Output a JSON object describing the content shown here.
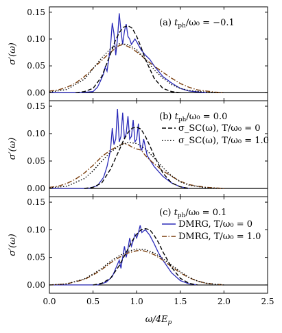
{
  "colors": {
    "dmrg_T0": "#2a2ab8",
    "dmrg_T1": "#7a3d0c",
    "sc_T0": "#000000",
    "sc_T1": "#000000",
    "zero_line": "#000000"
  },
  "chart_data": [
    {
      "type": "line",
      "panel_label": "(a) t_ph/ω₀ = −0.1",
      "ylabel": "σ′(ω)",
      "xlim": [
        0.0,
        2.5
      ],
      "ylim": [
        -0.015,
        0.16
      ],
      "yticks": [
        "0.00",
        "0.05",
        "0.10",
        "0.15"
      ],
      "series": [
        {
          "key": "dmrg_T0",
          "style": "solid",
          "x": [
            0.0,
            0.35,
            0.5,
            0.55,
            0.58,
            0.62,
            0.64,
            0.66,
            0.7,
            0.72,
            0.74,
            0.76,
            0.78,
            0.8,
            0.82,
            0.84,
            0.86,
            0.88,
            0.9,
            0.92,
            0.94,
            0.96,
            0.98,
            1.0,
            1.05,
            1.1,
            1.15,
            1.2,
            1.3,
            1.4,
            1.5,
            1.6,
            1.8
          ],
          "y": [
            0.0,
            0.0,
            0.002,
            0.01,
            0.02,
            0.035,
            0.048,
            0.04,
            0.085,
            0.13,
            0.11,
            0.07,
            0.1,
            0.148,
            0.115,
            0.09,
            0.115,
            0.128,
            0.105,
            0.1,
            0.09,
            0.095,
            0.1,
            0.095,
            0.08,
            0.07,
            0.062,
            0.05,
            0.03,
            0.018,
            0.008,
            0.003,
            0.0
          ]
        },
        {
          "key": "dmrg_T1",
          "style": "dashdot",
          "x": [
            0.0,
            0.1,
            0.2,
            0.3,
            0.4,
            0.5,
            0.55,
            0.6,
            0.65,
            0.7,
            0.75,
            0.8,
            0.85,
            0.9,
            0.95,
            1.0,
            1.05,
            1.1,
            1.2,
            1.3,
            1.4,
            1.5,
            1.6,
            1.7,
            1.8,
            1.9,
            2.0
          ],
          "y": [
            0.003,
            0.005,
            0.01,
            0.018,
            0.03,
            0.045,
            0.053,
            0.06,
            0.068,
            0.075,
            0.082,
            0.088,
            0.09,
            0.086,
            0.082,
            0.076,
            0.07,
            0.062,
            0.05,
            0.038,
            0.027,
            0.017,
            0.01,
            0.005,
            0.003,
            0.001,
            0.0
          ]
        },
        {
          "key": "sc_T0",
          "style": "dashed",
          "x": [
            0.3,
            0.4,
            0.5,
            0.6,
            0.7,
            0.75,
            0.8,
            0.85,
            0.9,
            0.95,
            1.0,
            1.05,
            1.1,
            1.2,
            1.3,
            1.4,
            1.5
          ],
          "y": [
            0.0,
            0.002,
            0.008,
            0.03,
            0.072,
            0.095,
            0.112,
            0.122,
            0.125,
            0.12,
            0.105,
            0.085,
            0.062,
            0.027,
            0.008,
            0.002,
            0.0
          ]
        },
        {
          "key": "sc_T1",
          "style": "dotted",
          "x": [
            0.0,
            0.2,
            0.4,
            0.5,
            0.6,
            0.7,
            0.8,
            0.9,
            1.0,
            1.1,
            1.2,
            1.3,
            1.4,
            1.5,
            1.6,
            1.8,
            2.0
          ],
          "y": [
            0.001,
            0.006,
            0.025,
            0.045,
            0.065,
            0.082,
            0.091,
            0.09,
            0.08,
            0.062,
            0.043,
            0.027,
            0.015,
            0.008,
            0.004,
            0.001,
            0.0
          ]
        }
      ]
    },
    {
      "type": "line",
      "panel_label": "(b) t_ph/ω₀ = 0.0",
      "ylabel": "σ′(ω)",
      "xlim": [
        0.0,
        2.5
      ],
      "ylim": [
        -0.015,
        0.16
      ],
      "yticks": [
        "0.00",
        "0.05",
        "0.10",
        "0.15"
      ],
      "legend": [
        {
          "key": "sc_T0",
          "style": "dashed",
          "label": "σ_SC(ω), T/ω₀ = 0"
        },
        {
          "key": "sc_T1",
          "style": "dotted",
          "label": "σ_SC(ω), T/ω₀ = 1.0"
        }
      ],
      "series": [
        {
          "key": "dmrg_T0",
          "style": "solid",
          "x": [
            0.0,
            0.45,
            0.55,
            0.62,
            0.66,
            0.7,
            0.72,
            0.74,
            0.76,
            0.78,
            0.8,
            0.82,
            0.84,
            0.86,
            0.88,
            0.9,
            0.92,
            0.94,
            0.96,
            0.98,
            1.0,
            1.02,
            1.04,
            1.06,
            1.08,
            1.12,
            1.2,
            1.3,
            1.4,
            1.5,
            1.6
          ],
          "y": [
            0.0,
            0.0,
            0.005,
            0.02,
            0.04,
            0.07,
            0.11,
            0.08,
            0.09,
            0.145,
            0.085,
            0.095,
            0.138,
            0.09,
            0.1,
            0.132,
            0.09,
            0.095,
            0.125,
            0.085,
            0.09,
            0.118,
            0.075,
            0.07,
            0.09,
            0.06,
            0.04,
            0.022,
            0.01,
            0.003,
            0.0
          ]
        },
        {
          "key": "dmrg_T1",
          "style": "dashdot",
          "x": [
            0.0,
            0.1,
            0.2,
            0.3,
            0.4,
            0.5,
            0.55,
            0.6,
            0.65,
            0.7,
            0.75,
            0.8,
            0.85,
            0.9,
            0.95,
            1.0,
            1.05,
            1.1,
            1.15,
            1.2,
            1.3,
            1.4,
            1.5,
            1.6,
            1.7,
            1.8,
            1.9,
            2.0
          ],
          "y": [
            0.002,
            0.004,
            0.009,
            0.017,
            0.028,
            0.042,
            0.05,
            0.058,
            0.064,
            0.07,
            0.074,
            0.078,
            0.082,
            0.08,
            0.075,
            0.072,
            0.07,
            0.06,
            0.052,
            0.045,
            0.032,
            0.022,
            0.013,
            0.007,
            0.004,
            0.002,
            0.001,
            0.0
          ]
        },
        {
          "key": "sc_T0",
          "style": "dashed",
          "x": [
            0.4,
            0.5,
            0.6,
            0.7,
            0.8,
            0.85,
            0.9,
            0.95,
            1.0,
            1.05,
            1.1,
            1.15,
            1.2,
            1.3,
            1.4,
            1.5,
            1.6
          ],
          "y": [
            0.0,
            0.002,
            0.01,
            0.035,
            0.07,
            0.088,
            0.102,
            0.11,
            0.112,
            0.108,
            0.095,
            0.078,
            0.06,
            0.028,
            0.01,
            0.003,
            0.0
          ]
        },
        {
          "key": "sc_T1",
          "style": "dotted",
          "x": [
            0.0,
            0.2,
            0.4,
            0.5,
            0.6,
            0.7,
            0.8,
            0.9,
            1.0,
            1.1,
            1.2,
            1.3,
            1.4,
            1.5,
            1.6,
            1.8,
            2.0
          ],
          "y": [
            0.001,
            0.004,
            0.018,
            0.032,
            0.05,
            0.066,
            0.078,
            0.084,
            0.082,
            0.072,
            0.056,
            0.038,
            0.023,
            0.012,
            0.006,
            0.001,
            0.0
          ]
        }
      ]
    },
    {
      "type": "line",
      "panel_label": "(c) t_ph/ω₀ = 0.1",
      "ylabel": "σ′(ω)",
      "xlabel": "ω/4E_p",
      "xlim": [
        0.0,
        2.5
      ],
      "ylim": [
        -0.015,
        0.16
      ],
      "yticks": [
        "0.00",
        "0.05",
        "0.10",
        "0.15"
      ],
      "xticks": [
        "0.0",
        "0.5",
        "1.0",
        "1.5",
        "2.0",
        "2.5"
      ],
      "legend": [
        {
          "key": "dmrg_T0",
          "style": "solid",
          "label": "DMRG, T/ω₀ = 0"
        },
        {
          "key": "dmrg_T1",
          "style": "dashdot",
          "label": "DMRG, T/ω₀ = 1.0"
        }
      ],
      "series": [
        {
          "key": "dmrg_T0",
          "style": "solid",
          "x": [
            0.0,
            0.55,
            0.65,
            0.72,
            0.76,
            0.8,
            0.82,
            0.84,
            0.86,
            0.88,
            0.9,
            0.92,
            0.94,
            0.96,
            0.98,
            1.0,
            1.02,
            1.04,
            1.06,
            1.08,
            1.1,
            1.15,
            1.2,
            1.25,
            1.3,
            1.4,
            1.5,
            1.6,
            1.7
          ],
          "y": [
            0.0,
            0.0,
            0.005,
            0.015,
            0.03,
            0.045,
            0.03,
            0.05,
            0.07,
            0.05,
            0.065,
            0.085,
            0.07,
            0.08,
            0.092,
            0.085,
            0.095,
            0.108,
            0.095,
            0.098,
            0.1,
            0.09,
            0.075,
            0.058,
            0.045,
            0.022,
            0.008,
            0.002,
            0.0
          ]
        },
        {
          "key": "dmrg_T1",
          "style": "dashdot",
          "x": [
            0.0,
            0.2,
            0.4,
            0.5,
            0.6,
            0.7,
            0.8,
            0.9,
            1.0,
            1.05,
            1.1,
            1.2,
            1.3,
            1.4,
            1.5,
            1.6,
            1.7,
            1.8,
            2.0
          ],
          "y": [
            0.0,
            0.002,
            0.01,
            0.018,
            0.028,
            0.04,
            0.05,
            0.058,
            0.062,
            0.063,
            0.061,
            0.055,
            0.045,
            0.033,
            0.022,
            0.013,
            0.007,
            0.003,
            0.0
          ]
        },
        {
          "key": "sc_T0",
          "style": "dashed",
          "x": [
            0.5,
            0.6,
            0.7,
            0.8,
            0.9,
            0.95,
            1.0,
            1.05,
            1.1,
            1.15,
            1.2,
            1.25,
            1.3,
            1.4,
            1.5,
            1.6,
            1.7
          ],
          "y": [
            0.0,
            0.003,
            0.012,
            0.035,
            0.065,
            0.08,
            0.092,
            0.1,
            0.102,
            0.1,
            0.09,
            0.077,
            0.06,
            0.032,
            0.012,
            0.003,
            0.0
          ]
        },
        {
          "key": "sc_T1",
          "style": "dotted",
          "x": [
            0.0,
            0.2,
            0.4,
            0.5,
            0.6,
            0.7,
            0.8,
            0.9,
            1.0,
            1.1,
            1.2,
            1.3,
            1.4,
            1.5,
            1.6,
            1.7,
            1.8,
            2.0
          ],
          "y": [
            0.0,
            0.002,
            0.011,
            0.02,
            0.03,
            0.043,
            0.053,
            0.061,
            0.065,
            0.064,
            0.058,
            0.048,
            0.036,
            0.024,
            0.014,
            0.007,
            0.003,
            0.0
          ]
        }
      ]
    }
  ]
}
